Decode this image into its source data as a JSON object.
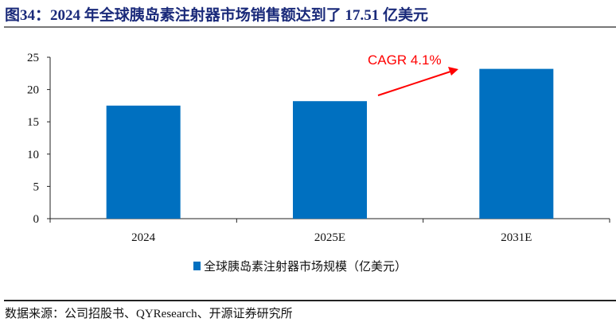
{
  "title": "图34：2024 年全球胰岛素注射器市场销售额达到了 17.51 亿美元",
  "source": "数据来源：公司招股书、QYResearch、开源证券研究所",
  "chart_data": {
    "type": "bar",
    "categories": [
      "2024",
      "2025E",
      "2031E"
    ],
    "series": [
      {
        "name": "全球胰岛素注射器市场规模（亿美元）",
        "values": [
          17.51,
          18.2,
          23.2
        ],
        "color": "#0070C0"
      }
    ],
    "ylim": [
      0,
      25
    ],
    "yticks": [
      0,
      5,
      10,
      15,
      20,
      25
    ],
    "grid": false,
    "legend": "bottom",
    "annotation": {
      "text": "CAGR 4.1%",
      "color": "#FF0000",
      "arrow": true
    }
  }
}
